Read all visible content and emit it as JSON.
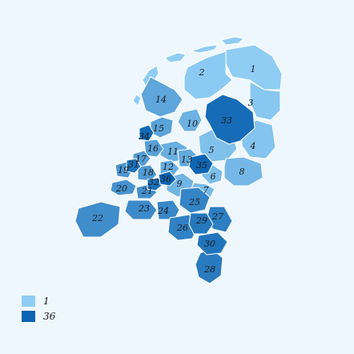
{
  "colors": {
    "background": "#eef7fd",
    "scale_min": "#8fcdf4",
    "scale_max": "#0b63b1",
    "border": "#ffffff"
  },
  "legend": {
    "min_label": "1",
    "max_label": "36"
  },
  "regions": [
    {
      "id": "1",
      "label": "1",
      "value": 1
    },
    {
      "id": "2",
      "label": "2",
      "value": 2
    },
    {
      "id": "3",
      "label": "3",
      "value": 3
    },
    {
      "id": "4",
      "label": "4",
      "value": 4
    },
    {
      "id": "5",
      "label": "5",
      "value": 5
    },
    {
      "id": "6",
      "label": "6",
      "value": 6
    },
    {
      "id": "7",
      "label": "7",
      "value": 7
    },
    {
      "id": "8",
      "label": "8",
      "value": 8
    },
    {
      "id": "9",
      "label": "9",
      "value": 9
    },
    {
      "id": "10",
      "label": "10",
      "value": 10
    },
    {
      "id": "11",
      "label": "11",
      "value": 11
    },
    {
      "id": "12",
      "label": "12",
      "value": 12
    },
    {
      "id": "13",
      "label": "13",
      "value": 13
    },
    {
      "id": "14",
      "label": "14",
      "value": 14
    },
    {
      "id": "15",
      "label": "15",
      "value": 15
    },
    {
      "id": "16",
      "label": "16",
      "value": 16
    },
    {
      "id": "17",
      "label": "17",
      "value": 17
    },
    {
      "id": "18",
      "label": "18",
      "value": 18
    },
    {
      "id": "19",
      "label": "19",
      "value": 19
    },
    {
      "id": "20",
      "label": "20",
      "value": 20
    },
    {
      "id": "21",
      "label": "21",
      "value": 21
    },
    {
      "id": "22",
      "label": "22",
      "value": 22
    },
    {
      "id": "23",
      "label": "23",
      "value": 23
    },
    {
      "id": "24",
      "label": "24",
      "value": 24
    },
    {
      "id": "25",
      "label": "25",
      "value": 25
    },
    {
      "id": "26",
      "label": "26",
      "value": 26
    },
    {
      "id": "27",
      "label": "27",
      "value": 27
    },
    {
      "id": "28",
      "label": "28",
      "value": 28
    },
    {
      "id": "29",
      "label": "29",
      "value": 29
    },
    {
      "id": "30",
      "label": "30",
      "value": 30
    },
    {
      "id": "31",
      "label": "31",
      "value": 31
    },
    {
      "id": "32",
      "label": "32",
      "value": 32
    },
    {
      "id": "33",
      "label": "33",
      "value": 33
    },
    {
      "id": "34",
      "label": "34",
      "value": 34
    },
    {
      "id": "35",
      "label": "35",
      "value": 35
    },
    {
      "id": "36",
      "label": "36",
      "value": 36
    }
  ]
}
